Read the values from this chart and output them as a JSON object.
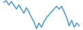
{
  "x": [
    0,
    1,
    2,
    3,
    4,
    5,
    6,
    7,
    8,
    9,
    10,
    11,
    12,
    13,
    14,
    15,
    16,
    17,
    18,
    19,
    20,
    21,
    22,
    23,
    24,
    25,
    26,
    27,
    28,
    29,
    30
  ],
  "y": [
    4.0,
    4.5,
    3.0,
    4.2,
    3.0,
    1.5,
    3.0,
    1.5,
    0.0,
    2.0,
    0.5,
    -1.5,
    -3.0,
    -5.5,
    -3.5,
    -5.0,
    -3.0,
    -1.5,
    -0.5,
    0.5,
    1.5,
    2.5,
    1.5,
    2.5,
    0.5,
    -1.5,
    -4.5,
    -2.5,
    -5.0,
    -3.5,
    -4.5
  ],
  "line_color": "#4d9ed4",
  "background_color": "#ffffff",
  "linewidth": 1.2
}
